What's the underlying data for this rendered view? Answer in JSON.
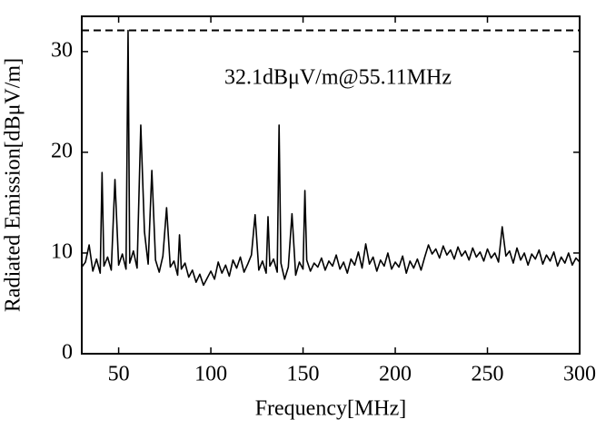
{
  "chart_data": {
    "type": "line",
    "xlabel": "Frequency[MHz]",
    "ylabel": "Radiated Emission[dBμV/m]",
    "annotation": "32.1dBμV/m@55.11MHz",
    "hline": 32.1,
    "xlim": [
      30,
      300
    ],
    "xticks": [
      50,
      100,
      150,
      200,
      250,
      300
    ],
    "ylim": [
      0,
      33.5
    ],
    "yticks": [
      0,
      10,
      20,
      30
    ],
    "grid": false,
    "x": [
      30,
      32,
      34,
      36,
      38,
      40,
      41,
      42,
      44,
      46,
      48,
      50,
      52,
      54,
      55.11,
      56,
      58,
      60,
      62,
      64,
      66,
      68,
      70,
      72,
      74,
      76,
      78,
      80,
      82,
      83,
      84,
      86,
      88,
      90,
      92,
      94,
      96,
      98,
      100,
      102,
      104,
      106,
      108,
      110,
      112,
      114,
      116,
      118,
      120,
      122,
      124,
      126,
      128,
      130,
      131,
      132,
      134,
      136,
      137,
      138,
      140,
      142,
      144,
      146,
      148,
      150,
      151,
      152,
      154,
      156,
      158,
      160,
      162,
      164,
      166,
      168,
      170,
      172,
      174,
      176,
      178,
      180,
      182,
      184,
      186,
      188,
      190,
      192,
      194,
      196,
      198,
      200,
      202,
      204,
      206,
      208,
      210,
      212,
      214,
      216,
      218,
      220,
      222,
      224,
      226,
      228,
      230,
      232,
      234,
      236,
      238,
      240,
      242,
      244,
      246,
      248,
      250,
      252,
      254,
      256,
      258,
      260,
      262,
      264,
      266,
      268,
      270,
      272,
      274,
      276,
      278,
      280,
      282,
      284,
      286,
      288,
      290,
      292,
      294,
      296,
      298,
      300
    ],
    "series": [
      {
        "name": "Radiated Emission",
        "color": "#000000",
        "values": [
          8.6,
          9.1,
          10.8,
          8.2,
          9.4,
          8.0,
          18.0,
          8.7,
          9.6,
          8.3,
          17.3,
          8.8,
          9.9,
          8.4,
          32.1,
          9.0,
          10.2,
          8.5,
          22.7,
          12.1,
          8.9,
          18.2,
          9.3,
          8.1,
          9.7,
          14.5,
          8.6,
          9.2,
          7.8,
          11.8,
          8.4,
          9.0,
          7.6,
          8.3,
          7.1,
          7.9,
          6.8,
          7.5,
          8.2,
          7.4,
          9.1,
          8.0,
          8.8,
          7.7,
          9.3,
          8.5,
          9.6,
          8.1,
          8.9,
          9.8,
          13.8,
          8.3,
          9.2,
          8.0,
          13.6,
          8.7,
          9.4,
          8.1,
          22.7,
          9.0,
          7.4,
          8.6,
          13.9,
          7.8,
          9.1,
          8.4,
          16.2,
          9.3,
          8.2,
          9.0,
          8.6,
          9.5,
          8.3,
          9.2,
          8.7,
          9.8,
          8.4,
          9.1,
          8.0,
          9.4,
          8.8,
          10.1,
          8.5,
          10.9,
          8.9,
          9.6,
          8.2,
          9.3,
          8.7,
          10.0,
          8.4,
          9.1,
          8.6,
          9.7,
          8.0,
          9.2,
          8.5,
          9.4,
          8.3,
          9.6,
          10.8,
          9.9,
          10.4,
          9.5,
          10.7,
          9.8,
          10.3,
          9.4,
          10.6,
          9.7,
          10.2,
          9.3,
          10.5,
          9.6,
          10.1,
          9.2,
          10.4,
          9.5,
          10.0,
          9.1,
          12.6,
          9.7,
          10.2,
          9.0,
          10.5,
          9.3,
          10.0,
          8.8,
          9.9,
          9.4,
          10.3,
          8.9,
          9.8,
          9.2,
          10.1,
          8.7,
          9.6,
          9.0,
          10.0,
          8.8,
          9.5,
          9.1
        ]
      }
    ]
  }
}
